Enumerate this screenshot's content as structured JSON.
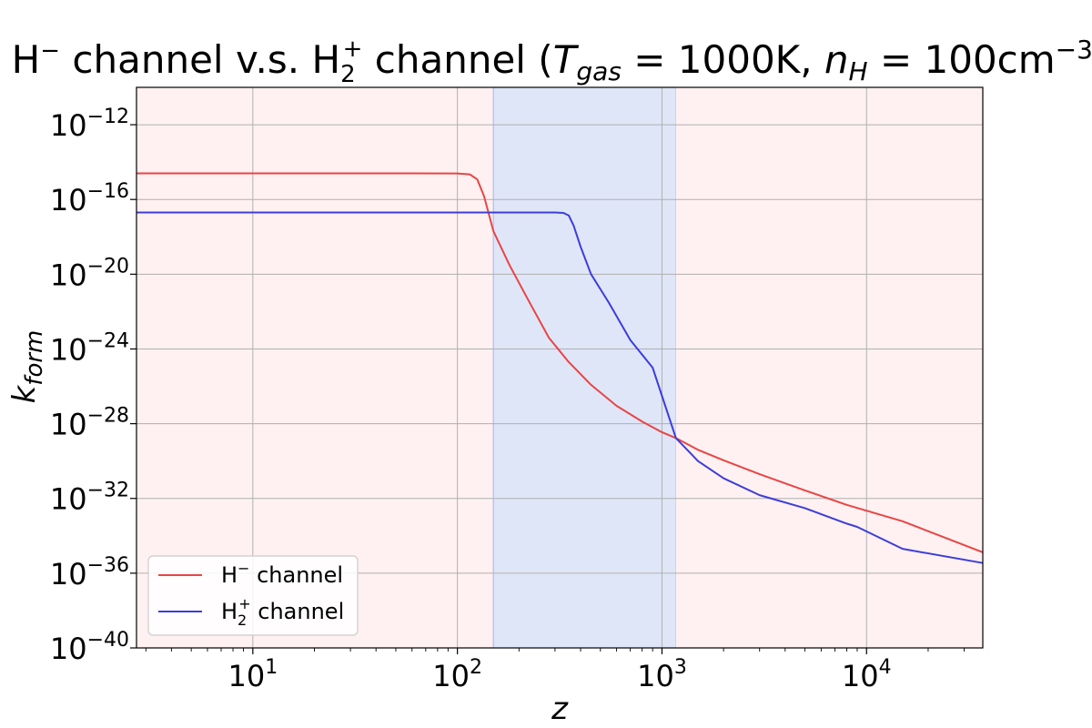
{
  "chart_data": {
    "type": "line",
    "title": {
      "part1": "H",
      "part1_sup": "−",
      "part2": " channel v.s. H",
      "part2_sub": "2",
      "part2_sup": "+",
      "part3": " channel (",
      "t_symbol": "T",
      "t_sub": "gas",
      "t_value": " = 1000K, ",
      "n_symbol": "n",
      "n_sub": "H",
      "n_value": " = 100cm",
      "n_exp": "−3",
      "close": ")"
    },
    "xlabel": "z",
    "ylabel": {
      "symbol": "k",
      "sub": "form"
    },
    "xscale": "log",
    "yscale": "log",
    "xlim": [
      2.7,
      37000
    ],
    "ylim": [
      1e-40,
      1e-10
    ],
    "x_ticks": [
      {
        "value": 10,
        "base": "10",
        "exp": "1"
      },
      {
        "value": 100,
        "base": "10",
        "exp": "2"
      },
      {
        "value": 1000,
        "base": "10",
        "exp": "3"
      },
      {
        "value": 10000,
        "base": "10",
        "exp": "4"
      }
    ],
    "y_ticks": [
      {
        "value": 1e-12,
        "base": "10",
        "exp": "−12"
      },
      {
        "value": 1e-16,
        "base": "10",
        "exp": "−16"
      },
      {
        "value": 1e-20,
        "base": "10",
        "exp": "−20"
      },
      {
        "value": 1e-24,
        "base": "10",
        "exp": "−24"
      },
      {
        "value": 1e-28,
        "base": "10",
        "exp": "−28"
      },
      {
        "value": 1e-32,
        "base": "10",
        "exp": "−32"
      },
      {
        "value": 1e-36,
        "base": "10",
        "exp": "−36"
      },
      {
        "value": 1e-40,
        "base": "10",
        "exp": "−40"
      }
    ],
    "grid": true,
    "regions": [
      {
        "from": 2.7,
        "to": 150,
        "color": "#fff1f1"
      },
      {
        "from": 150,
        "to": 1170,
        "color": "#dfe6f8",
        "edge_color": "#b9c7ef"
      },
      {
        "from": 1170,
        "to": 37000,
        "color": "#fff1f1"
      }
    ],
    "series": [
      {
        "name": {
          "base": "H",
          "sup": "−",
          "sub": "",
          "suffix": " channel"
        },
        "color": "#e84545",
        "x": [
          2.7,
          20,
          60,
          100,
          115,
          125,
          135,
          150,
          180,
          220,
          280,
          350,
          450,
          600,
          800,
          1000,
          1170,
          1500,
          2000,
          3000,
          5000,
          8000,
          15000,
          37000
        ],
        "y": [
          2.5e-15,
          2.5e-15,
          2.5e-15,
          2.45e-15,
          2.2e-15,
          1.2e-15,
          1.5e-16,
          2e-18,
          3e-20,
          5e-22,
          4e-24,
          2e-25,
          1.2e-26,
          9e-28,
          1.3e-28,
          3.5e-29,
          1.7e-29,
          4e-30,
          1.1e-30,
          2e-31,
          2.7e-32,
          4.5e-33,
          6e-34,
          1.3e-35
        ]
      },
      {
        "name": {
          "base": "H",
          "sup": "+",
          "sub": "2",
          "suffix": " channel"
        },
        "color": "#3d3ddb",
        "x": [
          2.7,
          50,
          150,
          250,
          300,
          330,
          350,
          370,
          400,
          450,
          550,
          700,
          900,
          1170,
          1500,
          2000,
          3000,
          5000,
          8000,
          9000,
          15000,
          37000
        ],
        "y": [
          2e-17,
          2e-17,
          2e-17,
          2e-17,
          2e-17,
          1.9e-17,
          1.4e-17,
          4e-18,
          3e-19,
          1e-20,
          3e-22,
          3e-24,
          1e-25,
          1.7e-29,
          1e-30,
          1.2e-31,
          1.5e-32,
          3e-33,
          4.5e-34,
          3e-34,
          2e-35,
          3.5e-36
        ]
      }
    ],
    "legend": {
      "location": "lower-left"
    }
  }
}
